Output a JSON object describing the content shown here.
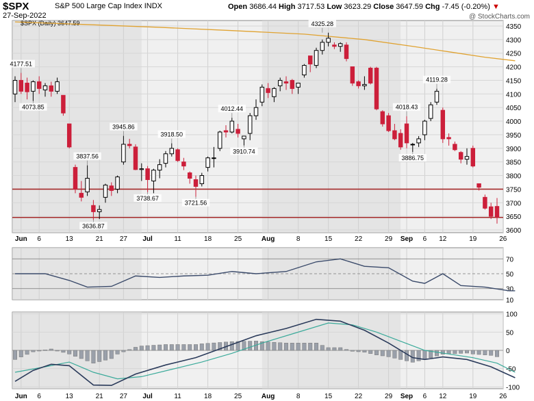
{
  "header": {
    "symbol": "$SPX",
    "name": "S&P 500 Large Cap Index",
    "exchange": "INDX",
    "date": "27-Sep-2022",
    "open_label": "Open",
    "open": "3686.44",
    "high_label": "High",
    "high": "3717.53",
    "low_label": "Low",
    "low": "3623.29",
    "close_label": "Close",
    "close": "3647.59",
    "chg_label": "Chg",
    "chg": "-7.45 (-0.20%)",
    "copyright": "@ StockCharts.com"
  },
  "legend": "$SPX (Daily) 3647.59",
  "colors": {
    "up": "#000000",
    "down": "#cc1f3a",
    "ma": "#e0a230",
    "hline": "#a52a2a",
    "rsi": "#3a4a6a",
    "macd": "#2a3a5a",
    "signal": "#3aaa9a",
    "hist": "#9aa0aa",
    "panel_bg": "#f0f0f0",
    "shade": "#dcdcdc"
  },
  "chart_data": [
    {
      "type": "candlestick",
      "title": "$SPX (Daily) 3647.59",
      "ylim": [
        3590,
        4370
      ],
      "yticks": [
        3600,
        3650,
        3700,
        3750,
        3800,
        3850,
        3900,
        3950,
        4000,
        4050,
        4100,
        4150,
        4200,
        4250,
        4300,
        4350
      ],
      "xticks": [
        "Jun",
        "6",
        "13",
        "21",
        "27",
        "Jul",
        "11",
        "18",
        "25",
        "Aug",
        "8",
        "15",
        "22",
        "29",
        "Sep",
        "6",
        "12",
        "19",
        "26"
      ],
      "candles": [
        {
          "o": 4100,
          "h": 4165,
          "l": 4070,
          "c": 4150
        },
        {
          "o": 4150,
          "h": 4177.51,
          "l": 4100,
          "c": 4110
        },
        {
          "o": 4140,
          "h": 4160,
          "l": 4080,
          "c": 4108
        },
        {
          "o": 4110,
          "h": 4150,
          "l": 4073.85,
          "c": 4145
        },
        {
          "o": 4145,
          "h": 4165,
          "l": 4100,
          "c": 4120
        },
        {
          "o": 4115,
          "h": 4140,
          "l": 4090,
          "c": 4130
        },
        {
          "o": 4130,
          "h": 4145,
          "l": 4090,
          "c": 4110
        },
        {
          "o": 4110,
          "h": 4160,
          "l": 4100,
          "c": 4145
        },
        {
          "o": 4095,
          "h": 4095,
          "l": 4020,
          "c": 4030
        },
        {
          "o": 3990,
          "h": 3990,
          "l": 3900,
          "c": 3905
        },
        {
          "o": 3830,
          "h": 3840,
          "l": 3735,
          "c": 3750
        },
        {
          "o": 3735,
          "h": 3780,
          "l": 3705,
          "c": 3720
        },
        {
          "o": 3740,
          "h": 3837.56,
          "l": 3725,
          "c": 3790
        },
        {
          "o": 3690,
          "h": 3710,
          "l": 3636.87,
          "c": 3667
        },
        {
          "o": 3667,
          "h": 3690,
          "l": 3640,
          "c": 3675
        },
        {
          "o": 3720,
          "h": 3770,
          "l": 3700,
          "c": 3765
        },
        {
          "o": 3762,
          "h": 3775,
          "l": 3725,
          "c": 3745
        },
        {
          "o": 3750,
          "h": 3800,
          "l": 3735,
          "c": 3795
        },
        {
          "o": 3850,
          "h": 3945.86,
          "l": 3840,
          "c": 3915
        },
        {
          "o": 3915,
          "h": 3935,
          "l": 3900,
          "c": 3910
        },
        {
          "o": 3905,
          "h": 3915,
          "l": 3820,
          "c": 3822
        },
        {
          "o": 3822,
          "h": 3845,
          "l": 3780,
          "c": 3825
        },
        {
          "o": 3825,
          "h": 3835,
          "l": 3738.67,
          "c": 3785
        },
        {
          "o": 3780,
          "h": 3825,
          "l": 3735,
          "c": 3820
        },
        {
          "o": 3820,
          "h": 3860,
          "l": 3790,
          "c": 3840
        },
        {
          "o": 3845,
          "h": 3890,
          "l": 3830,
          "c": 3880
        },
        {
          "o": 3880,
          "h": 3918.5,
          "l": 3870,
          "c": 3900
        },
        {
          "o": 3895,
          "h": 3900,
          "l": 3850,
          "c": 3855
        },
        {
          "o": 3850,
          "h": 3865,
          "l": 3820,
          "c": 3835
        },
        {
          "o": 3810,
          "h": 3815,
          "l": 3770,
          "c": 3790
        },
        {
          "o": 3785,
          "h": 3800,
          "l": 3721.56,
          "c": 3760
        },
        {
          "o": 3770,
          "h": 3810,
          "l": 3760,
          "c": 3800
        },
        {
          "o": 3830,
          "h": 3870,
          "l": 3815,
          "c": 3865
        },
        {
          "o": 3865,
          "h": 3905,
          "l": 3830,
          "c": 3865
        },
        {
          "o": 3900,
          "h": 3965,
          "l": 3890,
          "c": 3960
        },
        {
          "o": 3965,
          "h": 3985,
          "l": 3940,
          "c": 3960
        },
        {
          "o": 3960,
          "h": 4012.44,
          "l": 3955,
          "c": 4000
        },
        {
          "o": 3970,
          "h": 3990,
          "l": 3940,
          "c": 3955
        },
        {
          "o": 3935,
          "h": 3945,
          "l": 3910.74,
          "c": 3945
        },
        {
          "o": 3955,
          "h": 4030,
          "l": 3930,
          "c": 4020
        },
        {
          "o": 4020,
          "h": 4080,
          "l": 4005,
          "c": 4050
        },
        {
          "o": 4070,
          "h": 4135,
          "l": 4055,
          "c": 4125
        },
        {
          "o": 4120,
          "h": 4140,
          "l": 4085,
          "c": 4105
        },
        {
          "o": 4090,
          "h": 4125,
          "l": 4070,
          "c": 4120
        },
        {
          "o": 4130,
          "h": 4160,
          "l": 4110,
          "c": 4150
        },
        {
          "o": 4145,
          "h": 4165,
          "l": 4115,
          "c": 4140
        },
        {
          "o": 4150,
          "h": 4155,
          "l": 4100,
          "c": 4120
        },
        {
          "o": 4125,
          "h": 4140,
          "l": 4100,
          "c": 4140
        },
        {
          "o": 4170,
          "h": 4210,
          "l": 4160,
          "c": 4205
        },
        {
          "o": 4240,
          "h": 4240,
          "l": 4180,
          "c": 4210
        },
        {
          "o": 4205,
          "h": 4270,
          "l": 4195,
          "c": 4260
        },
        {
          "o": 4260,
          "h": 4300,
          "l": 4245,
          "c": 4290
        },
        {
          "o": 4290,
          "h": 4325.28,
          "l": 4275,
          "c": 4305
        },
        {
          "o": 4280,
          "h": 4290,
          "l": 4265,
          "c": 4275
        },
        {
          "o": 4275,
          "h": 4290,
          "l": 4255,
          "c": 4285
        },
        {
          "o": 4280,
          "h": 4290,
          "l": 4220,
          "c": 4230
        },
        {
          "o": 4200,
          "h": 4200,
          "l": 4130,
          "c": 4140
        },
        {
          "o": 4145,
          "h": 4150,
          "l": 4120,
          "c": 4130
        },
        {
          "o": 4130,
          "h": 4165,
          "l": 4115,
          "c": 4135
        },
        {
          "o": 4195,
          "h": 4200,
          "l": 4135,
          "c": 4140
        },
        {
          "o": 4195,
          "h": 4200,
          "l": 4040,
          "c": 4045
        },
        {
          "o": 4035,
          "h": 4040,
          "l": 3980,
          "c": 3990
        },
        {
          "o": 4020,
          "h": 4030,
          "l": 3960,
          "c": 3965
        },
        {
          "o": 3965,
          "h": 3990,
          "l": 3930,
          "c": 3935
        },
        {
          "o": 3955,
          "h": 3970,
          "l": 3895,
          "c": 3905
        },
        {
          "o": 3990,
          "h": 4018.43,
          "l": 3900,
          "c": 3920
        },
        {
          "o": 3915,
          "h": 3920,
          "l": 3886.75,
          "c": 3915
        },
        {
          "o": 3920,
          "h": 3945,
          "l": 3905,
          "c": 3935
        },
        {
          "o": 3950,
          "h": 4005,
          "l": 3930,
          "c": 4000
        },
        {
          "o": 4010,
          "h": 4070,
          "l": 4000,
          "c": 4060
        },
        {
          "o": 4070,
          "h": 4119.28,
          "l": 4060,
          "c": 4110
        },
        {
          "o": 4040,
          "h": 4050,
          "l": 3920,
          "c": 3935
        },
        {
          "o": 3940,
          "h": 3955,
          "l": 3910,
          "c": 3935
        },
        {
          "o": 3915,
          "h": 3925,
          "l": 3890,
          "c": 3895
        },
        {
          "o": 3885,
          "h": 3890,
          "l": 3845,
          "c": 3860
        },
        {
          "o": 3860,
          "h": 3900,
          "l": 3840,
          "c": 3870
        },
        {
          "o": 3900,
          "h": 3910,
          "l": 3830,
          "c": 3835
        },
        {
          "o": 3770,
          "h": 3770,
          "l": 3745,
          "c": 3757
        },
        {
          "o": 3720,
          "h": 3730,
          "l": 3675,
          "c": 3680
        },
        {
          "o": 3685,
          "h": 3700,
          "l": 3640,
          "c": 3650
        },
        {
          "o": 3686.44,
          "h": 3717.53,
          "l": 3623.29,
          "c": 3647.59
        }
      ],
      "annotations": [
        {
          "i": 1,
          "v": 4177.51,
          "text": "4177.51",
          "pos": "above"
        },
        {
          "i": 3,
          "v": 4073.85,
          "text": "4073.85",
          "pos": "below"
        },
        {
          "i": 12,
          "v": 3837.56,
          "text": "3837.56",
          "pos": "above"
        },
        {
          "i": 13,
          "v": 3636.87,
          "text": "3636.87",
          "pos": "below"
        },
        {
          "i": 18,
          "v": 3945.86,
          "text": "3945.86",
          "pos": "above"
        },
        {
          "i": 22,
          "v": 3738.67,
          "text": "3738.67",
          "pos": "below"
        },
        {
          "i": 26,
          "v": 3918.5,
          "text": "3918.50",
          "pos": "above"
        },
        {
          "i": 30,
          "v": 3721.56,
          "text": "3721.56",
          "pos": "below"
        },
        {
          "i": 36,
          "v": 4012.44,
          "text": "4012.44",
          "pos": "above"
        },
        {
          "i": 38,
          "v": 3910.74,
          "text": "3910.74",
          "pos": "below"
        },
        {
          "i": 51,
          "v": 4325.28,
          "text": "4325.28",
          "pos": "above"
        },
        {
          "i": 65,
          "v": 4018.43,
          "text": "4018.43",
          "pos": "above"
        },
        {
          "i": 66,
          "v": 3886.75,
          "text": "3886.75",
          "pos": "below"
        },
        {
          "i": 70,
          "v": 4119.28,
          "text": "4119.28",
          "pos": "above"
        }
      ],
      "ma": [
        [
          0,
          4365
        ],
        [
          12,
          4355
        ],
        [
          24,
          4345
        ],
        [
          36,
          4333
        ],
        [
          48,
          4320
        ],
        [
          58,
          4300
        ],
        [
          66,
          4275
        ],
        [
          72,
          4255
        ],
        [
          78,
          4235
        ],
        [
          83,
          4222
        ]
      ],
      "hlines": [
        3750,
        3646
      ]
    },
    {
      "type": "line",
      "ylim": [
        15,
        85
      ],
      "yticks": [
        10,
        30,
        50,
        70
      ],
      "ref_lines": [
        30,
        50,
        70
      ],
      "values": [
        [
          0,
          50
        ],
        [
          5,
          50
        ],
        [
          9,
          41
        ],
        [
          12,
          32
        ],
        [
          16,
          33
        ],
        [
          20,
          47
        ],
        [
          24,
          45
        ],
        [
          28,
          47
        ],
        [
          32,
          48
        ],
        [
          36,
          53
        ],
        [
          40,
          50
        ],
        [
          45,
          53
        ],
        [
          50,
          66
        ],
        [
          54,
          70
        ],
        [
          58,
          60
        ],
        [
          62,
          58
        ],
        [
          66,
          40
        ],
        [
          68,
          37
        ],
        [
          71,
          50
        ],
        [
          74,
          34
        ],
        [
          78,
          32
        ],
        [
          82,
          27
        ],
        [
          83,
          27
        ]
      ]
    },
    {
      "type": "line",
      "ylim": [
        -105,
        105
      ],
      "yticks": [
        -100,
        -50,
        0,
        50,
        100
      ],
      "macd": [
        [
          0,
          -85
        ],
        [
          3,
          -55
        ],
        [
          6,
          -38
        ],
        [
          9,
          -42
        ],
        [
          13,
          -95
        ],
        [
          16,
          -96
        ],
        [
          20,
          -65
        ],
        [
          25,
          -40
        ],
        [
          30,
          -20
        ],
        [
          35,
          10
        ],
        [
          40,
          40
        ],
        [
          45,
          60
        ],
        [
          50,
          85
        ],
        [
          54,
          80
        ],
        [
          58,
          55
        ],
        [
          62,
          20
        ],
        [
          66,
          -20
        ],
        [
          68,
          -25
        ],
        [
          71,
          -18
        ],
        [
          75,
          -25
        ],
        [
          79,
          -45
        ],
        [
          83,
          -75
        ]
      ],
      "signal": [
        [
          0,
          -60
        ],
        [
          5,
          -45
        ],
        [
          9,
          -32
        ],
        [
          13,
          -60
        ],
        [
          17,
          -78
        ],
        [
          21,
          -72
        ],
        [
          26,
          -52
        ],
        [
          31,
          -32
        ],
        [
          36,
          -8
        ],
        [
          41,
          20
        ],
        [
          46,
          45
        ],
        [
          52,
          75
        ],
        [
          56,
          70
        ],
        [
          60,
          50
        ],
        [
          64,
          25
        ],
        [
          68,
          0
        ],
        [
          72,
          -10
        ],
        [
          76,
          -20
        ],
        [
          80,
          -35
        ],
        [
          83,
          -60
        ]
      ]
    }
  ]
}
